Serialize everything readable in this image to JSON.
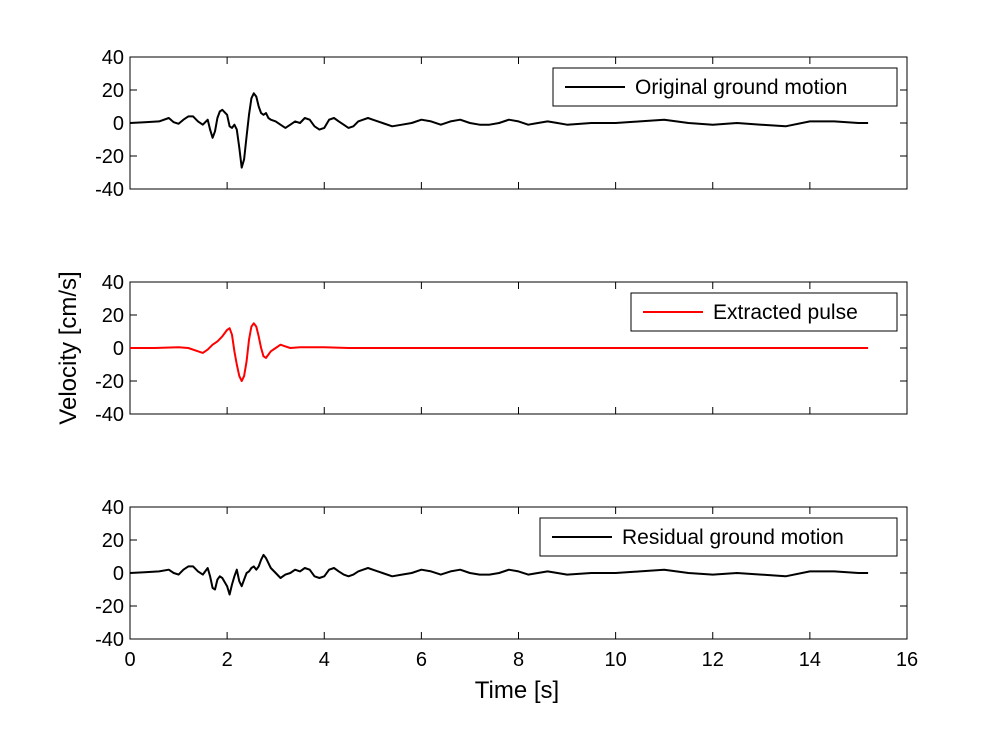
{
  "figure": {
    "ylabel": "Velocity [cm/s]",
    "xlabel": "Time [s]"
  },
  "chart_data": [
    {
      "type": "line",
      "panel": "top",
      "xlim": [
        0,
        16
      ],
      "ylim": [
        -40,
        40
      ],
      "x_ticks": [
        0,
        2,
        4,
        6,
        8,
        10,
        12,
        14,
        16
      ],
      "y_ticks": [
        40,
        20,
        0,
        -20,
        -40
      ],
      "x_tick_labels_shown": false,
      "legend_position": "top-right",
      "grid": false,
      "series": [
        {
          "name": "Original ground motion",
          "color": "#000000",
          "x": [
            0,
            0.3,
            0.6,
            0.8,
            0.9,
            1.0,
            1.1,
            1.2,
            1.3,
            1.4,
            1.5,
            1.6,
            1.65,
            1.7,
            1.75,
            1.8,
            1.85,
            1.9,
            2.0,
            2.05,
            2.1,
            2.15,
            2.2,
            2.25,
            2.3,
            2.35,
            2.4,
            2.45,
            2.5,
            2.55,
            2.6,
            2.65,
            2.7,
            2.75,
            2.8,
            2.85,
            2.9,
            3.0,
            3.1,
            3.2,
            3.3,
            3.4,
            3.5,
            3.6,
            3.7,
            3.8,
            3.9,
            4.0,
            4.1,
            4.2,
            4.3,
            4.4,
            4.5,
            4.6,
            4.7,
            4.8,
            4.9,
            5.0,
            5.2,
            5.4,
            5.6,
            5.8,
            6.0,
            6.2,
            6.4,
            6.6,
            6.8,
            7.0,
            7.2,
            7.4,
            7.6,
            7.8,
            8.0,
            8.2,
            8.4,
            8.6,
            8.8,
            9.0,
            9.5,
            10.0,
            10.5,
            11.0,
            11.5,
            12.0,
            12.5,
            13.0,
            13.5,
            14.0,
            14.5,
            15.0,
            15.2
          ],
          "y": [
            0,
            0.5,
            1,
            3,
            0.5,
            -0.5,
            2,
            4,
            4,
            1,
            -1,
            2,
            -4,
            -9,
            -5,
            3,
            7,
            8,
            5,
            -2,
            -3,
            -1,
            -4,
            -15,
            -27,
            -22,
            -8,
            5,
            15,
            18,
            16,
            10,
            6,
            5,
            6,
            3,
            2,
            1,
            -1,
            -3,
            -1,
            1,
            0,
            3,
            2,
            -2,
            -4,
            -3,
            2,
            3,
            1,
            -1,
            -3,
            -2,
            1,
            2,
            3,
            2,
            0,
            -2,
            -1,
            0,
            2,
            1,
            -1,
            1,
            2,
            0,
            -1,
            -1,
            0,
            2,
            1,
            -1,
            0,
            1,
            0,
            -1,
            0,
            0,
            1,
            2,
            0,
            -1,
            0,
            -1,
            -2,
            1,
            1,
            0,
            0
          ]
        }
      ]
    },
    {
      "type": "line",
      "panel": "middle",
      "xlim": [
        0,
        16
      ],
      "ylim": [
        -40,
        40
      ],
      "x_ticks": [
        0,
        2,
        4,
        6,
        8,
        10,
        12,
        14,
        16
      ],
      "y_ticks": [
        40,
        20,
        0,
        -20,
        -40
      ],
      "x_tick_labels_shown": false,
      "legend_position": "top-right",
      "grid": false,
      "series": [
        {
          "name": "Extracted pulse",
          "color": "#ff0000",
          "x": [
            0,
            0.5,
            1.0,
            1.2,
            1.4,
            1.5,
            1.6,
            1.7,
            1.8,
            1.9,
            2.0,
            2.05,
            2.1,
            2.15,
            2.2,
            2.25,
            2.3,
            2.35,
            2.4,
            2.45,
            2.5,
            2.55,
            2.6,
            2.65,
            2.7,
            2.75,
            2.8,
            2.85,
            2.9,
            3.0,
            3.1,
            3.2,
            3.3,
            3.5,
            4.0,
            4.5,
            15.2
          ],
          "y": [
            0,
            0,
            0.5,
            0,
            -2,
            -3,
            -1,
            2,
            4,
            7,
            11,
            12,
            8,
            -2,
            -10,
            -17,
            -20,
            -17,
            -8,
            5,
            13,
            15,
            13,
            7,
            0,
            -5,
            -6,
            -4,
            -2,
            0,
            2,
            1,
            0,
            0.5,
            0.5,
            0,
            0
          ]
        }
      ]
    },
    {
      "type": "line",
      "panel": "bottom",
      "xlim": [
        0,
        16
      ],
      "ylim": [
        -40,
        40
      ],
      "x_ticks": [
        0,
        2,
        4,
        6,
        8,
        10,
        12,
        14,
        16
      ],
      "y_ticks": [
        40,
        20,
        0,
        -20,
        -40
      ],
      "x_tick_labels": [
        "0",
        "2",
        "4",
        "6",
        "8",
        "10",
        "12",
        "14",
        "16"
      ],
      "legend_position": "top-right",
      "grid": false,
      "series": [
        {
          "name": "Residual ground motion",
          "color": "#000000",
          "x": [
            0,
            0.3,
            0.6,
            0.8,
            0.9,
            1.0,
            1.1,
            1.2,
            1.3,
            1.4,
            1.5,
            1.6,
            1.65,
            1.7,
            1.75,
            1.8,
            1.85,
            1.9,
            2.0,
            2.05,
            2.1,
            2.15,
            2.2,
            2.25,
            2.3,
            2.35,
            2.4,
            2.45,
            2.5,
            2.55,
            2.6,
            2.65,
            2.7,
            2.75,
            2.8,
            2.85,
            2.9,
            3.0,
            3.1,
            3.2,
            3.3,
            3.4,
            3.5,
            3.6,
            3.7,
            3.8,
            3.9,
            4.0,
            4.1,
            4.2,
            4.3,
            4.4,
            4.5,
            4.6,
            4.7,
            4.8,
            4.9,
            5.0,
            5.2,
            5.4,
            5.6,
            5.8,
            6.0,
            6.2,
            6.4,
            6.6,
            6.8,
            7.0,
            7.2,
            7.4,
            7.6,
            7.8,
            8.0,
            8.2,
            8.4,
            8.6,
            8.8,
            9.0,
            9.5,
            10.0,
            10.5,
            11.0,
            11.5,
            12.0,
            12.5,
            13.0,
            13.5,
            14.0,
            14.5,
            15.0,
            15.2
          ],
          "y": [
            0,
            0.5,
            1,
            2,
            0,
            -1,
            2,
            4,
            4,
            1,
            -1,
            3,
            -2,
            -9,
            -10,
            -4,
            -2,
            -3,
            -8,
            -13,
            -7,
            -2,
            2,
            -5,
            -8,
            -4,
            0,
            1,
            3,
            4,
            2,
            4,
            8,
            11,
            9,
            6,
            3,
            0,
            -3,
            -1,
            0,
            2,
            1,
            3,
            2,
            -2,
            -3,
            -2,
            2,
            3,
            1,
            -1,
            -2,
            -1,
            1,
            2,
            3,
            2,
            0,
            -2,
            -1,
            0,
            2,
            1,
            -1,
            1,
            2,
            0,
            -1,
            -1,
            0,
            2,
            1,
            -1,
            0,
            1,
            0,
            -1,
            0,
            0,
            1,
            2,
            0,
            -1,
            0,
            -1,
            -2,
            1,
            1,
            0,
            0
          ]
        }
      ]
    }
  ]
}
